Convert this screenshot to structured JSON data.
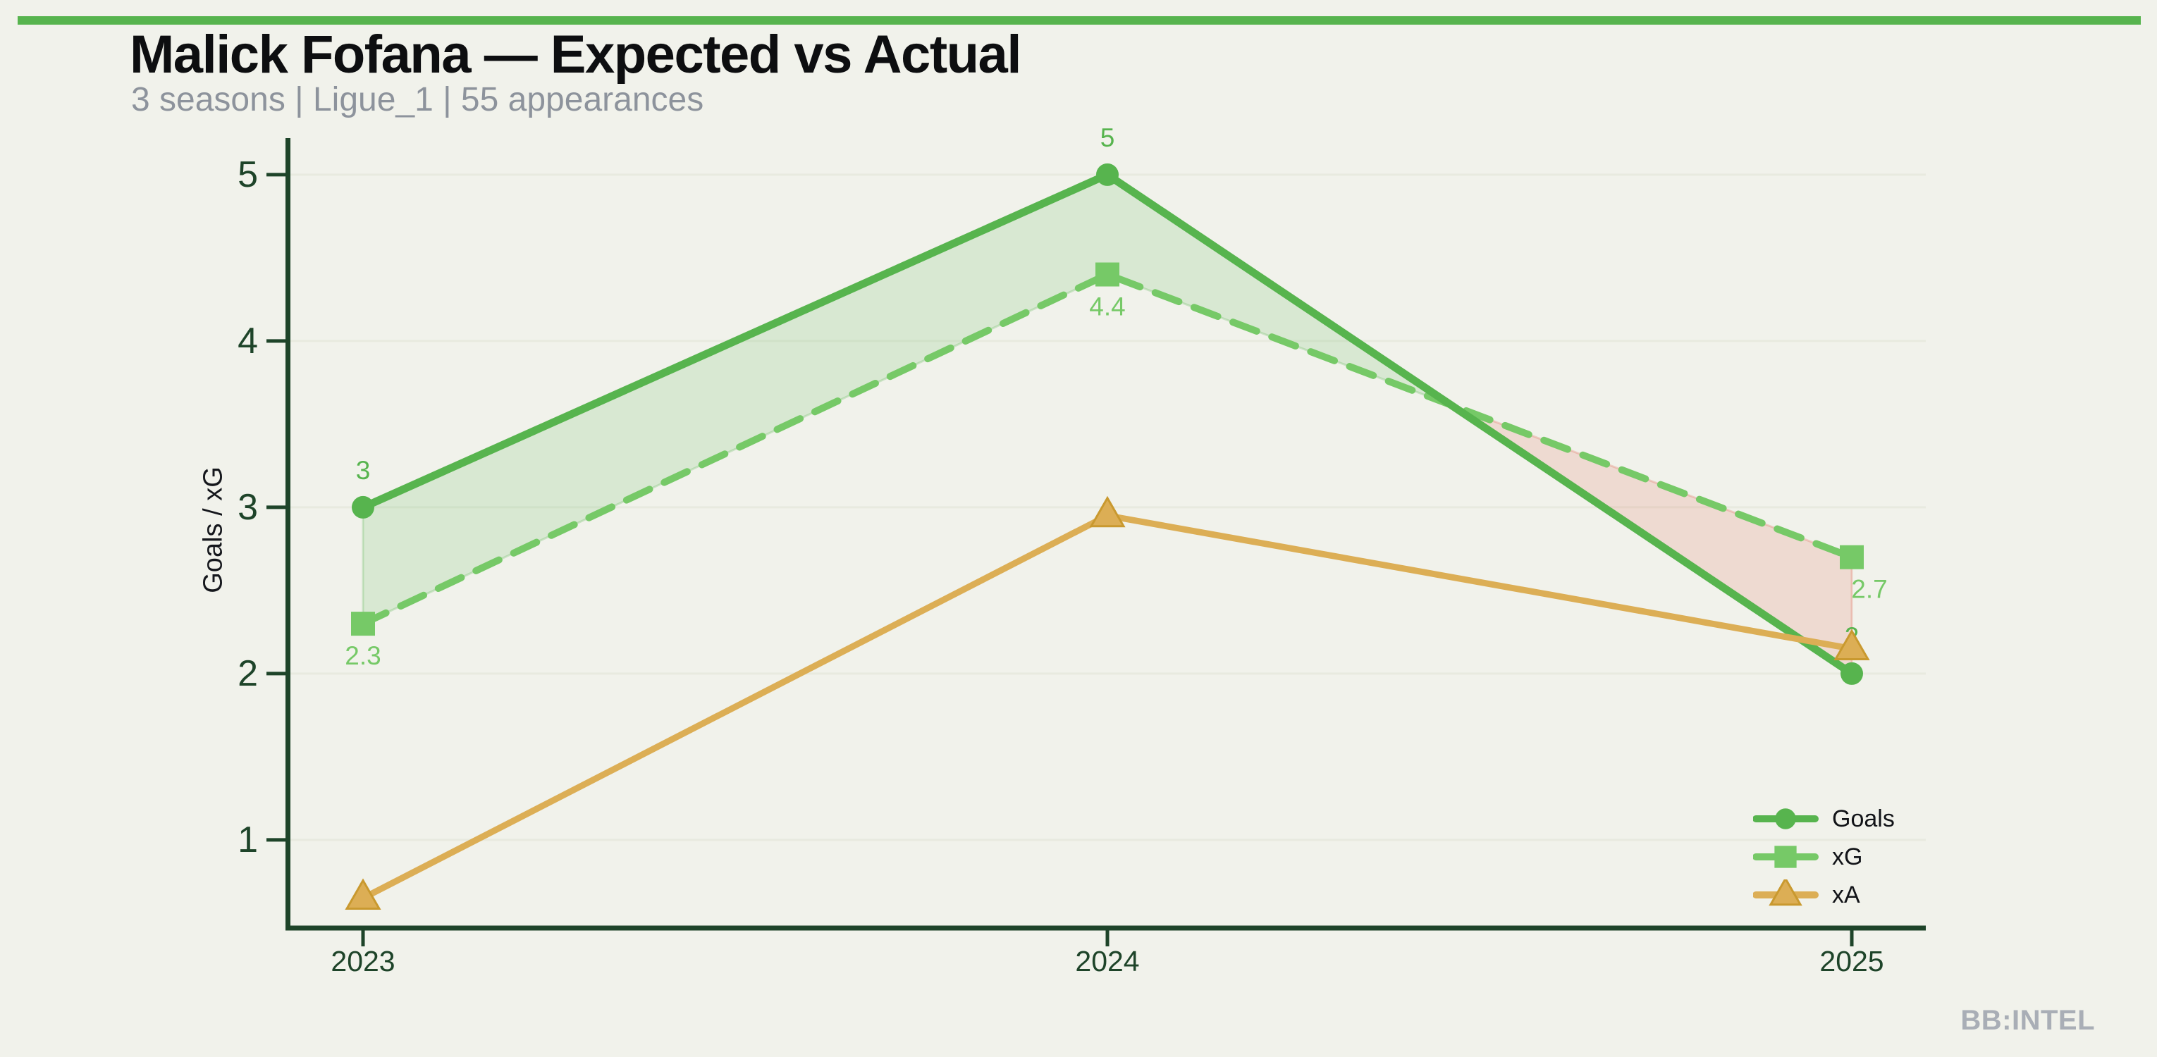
{
  "page": {
    "background": "#f1f2eb",
    "accent_bar_color": "#57b44e"
  },
  "header": {
    "title": "Malick Fofana — Expected vs Actual",
    "subtitle": "3 seasons | Ligue_1 | 55 appearances"
  },
  "watermark": "BB:INTEL",
  "chart_data": {
    "type": "line",
    "x": [
      2023,
      2024,
      2025
    ],
    "x_labels": [
      "2023",
      "2024",
      "2025"
    ],
    "series": [
      {
        "name": "Goals",
        "values": [
          3,
          5,
          2
        ],
        "labels": [
          "3",
          "5",
          "2"
        ],
        "color": "#57b44e",
        "marker": "circle",
        "style": "solid"
      },
      {
        "name": "xG",
        "values": [
          2.3,
          4.4,
          2.7
        ],
        "labels": [
          "2.3",
          "4.4",
          "2.7"
        ],
        "color": "#76c967",
        "marker": "square",
        "style": "dashed"
      },
      {
        "name": "xA",
        "values": [
          0.65,
          2.95,
          2.15
        ],
        "labels": [],
        "color": "#dcae55",
        "marker": "triangle",
        "style": "solid",
        "marker_edge": "#c9992f"
      }
    ],
    "ylabel": "Goals / xG",
    "xlabel": "",
    "yticks": [
      1,
      2,
      3,
      4,
      5
    ],
    "ylim": [
      0.47,
      5.22
    ],
    "grid": true,
    "legend_position": "lower right",
    "axis_color": "#1e4429",
    "grid_color": "#e8eadf",
    "fill_between": {
      "series_a": "Goals",
      "series_b": "xG",
      "above_color": "#57b44e",
      "below_color": "#e0604c",
      "opacity": 0.16
    }
  }
}
